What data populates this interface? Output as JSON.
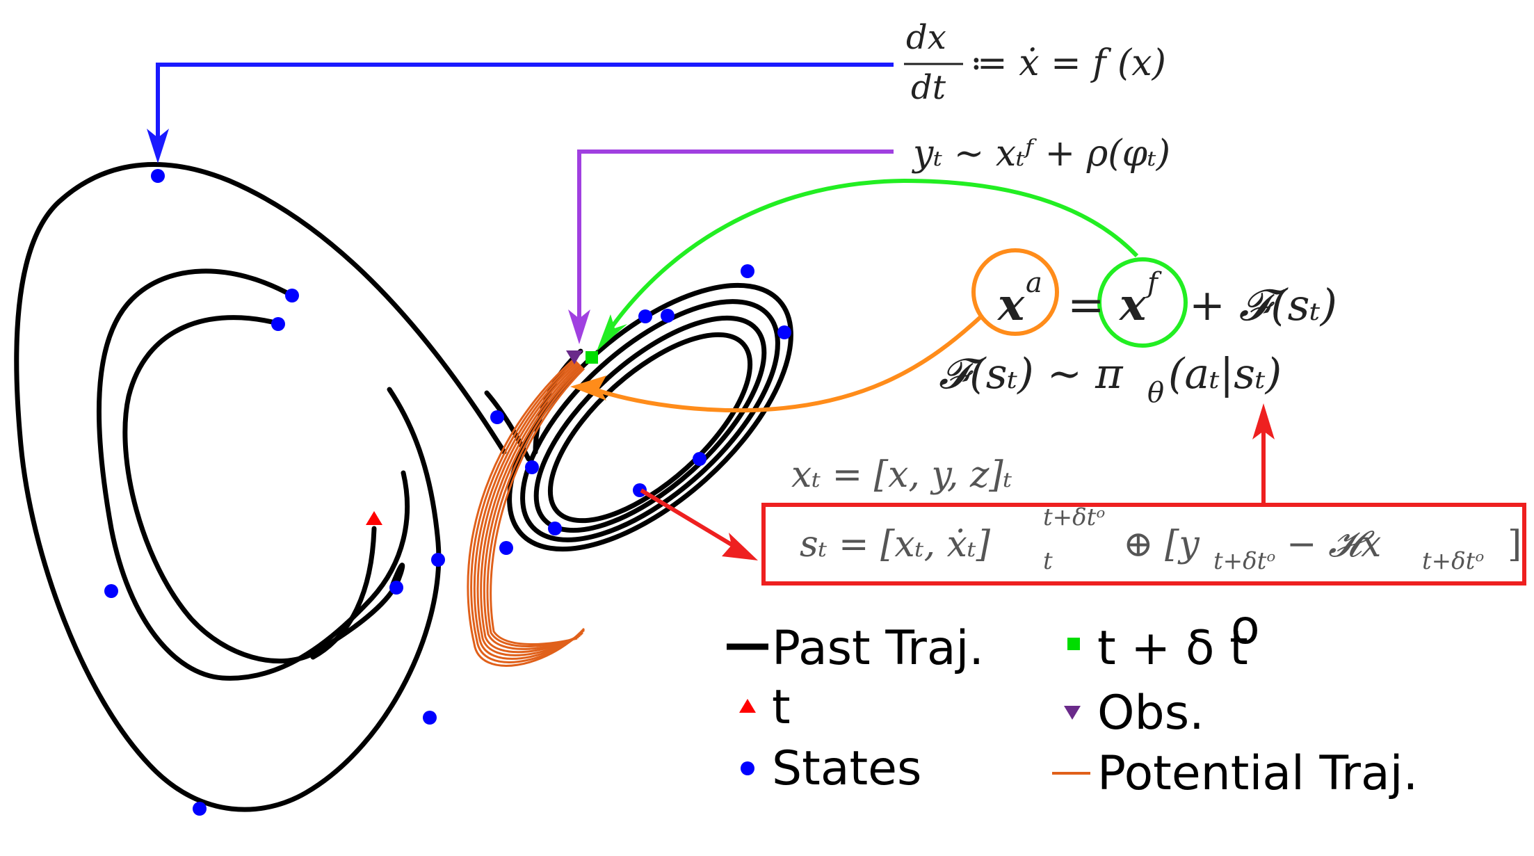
{
  "equations": {
    "dynamics_num": "dx",
    "dynamics_den": "dt",
    "dynamics_rhs": "≔ ẋ = f (x)",
    "observation": "yₜ ∼ xₜᶠ + ρ(φₜ)",
    "analysis_xa": "x",
    "analysis_xa_sup": "a",
    "analysis_eq": "=",
    "analysis_xf": "x",
    "analysis_xf_sup": "f",
    "analysis_rest": "+ 𝓕(sₜ)",
    "policy": "𝓕(sₜ) ∼ π",
    "policy_theta": "θ",
    "policy_rest": "(aₜ|sₜ)",
    "state_vector": "xₜ = [x, y, z]ₜ",
    "state_def_left": "sₜ = [xₜ, ẋₜ]",
    "state_def_sup": "t+δtᵒ",
    "state_def_sub": "t",
    "state_def_right": "⊕ [y",
    "state_def_sub2": "t+δtᵒ",
    "state_def_mid": " − 𝓗x",
    "state_def_sub3": "t+δtᵒ",
    "state_def_end": "]"
  },
  "legend": {
    "past_traj": "Past Traj.",
    "t_marker": "t",
    "states": "States",
    "t_plus": "t + δ t",
    "t_plus_sup": "o",
    "obs": "Obs.",
    "potential_traj": "Potential Traj."
  },
  "colors": {
    "trajectory": "#000000",
    "state_dot": "#0000ff",
    "dynamics_arrow": "#1a1aff",
    "observation_arrow": "#a040e0",
    "forecast_arrow": "#22ee22",
    "analysis_arrow": "#ff8c1a",
    "state_box": "#ee2020",
    "potential_traj": "#e0601a",
    "obs_marker": "#6a2a8a",
    "t_marker": "#ff0000",
    "t_plus_marker": "#00dd00"
  }
}
